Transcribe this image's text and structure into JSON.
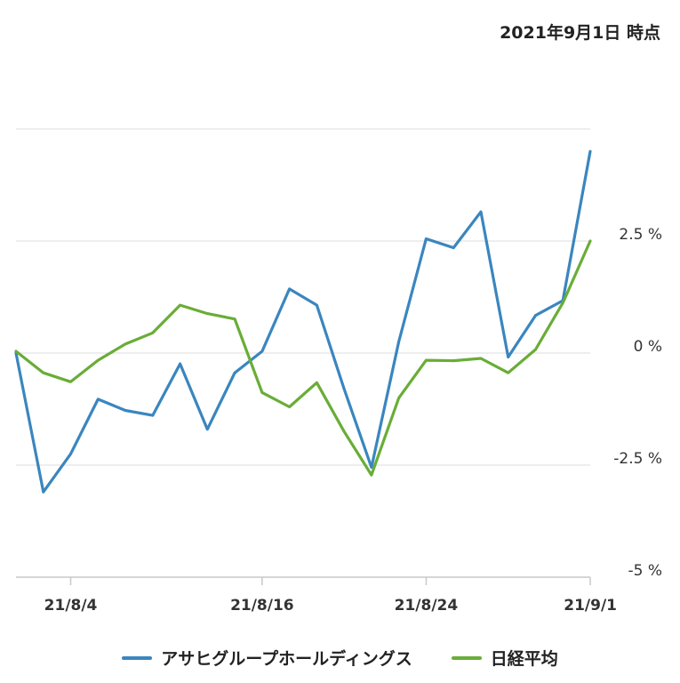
{
  "as_of": "2021年9月1日 時点",
  "colors": {
    "asahi": "#3a86bf",
    "nikkei": "#69ad37",
    "grid": "#dcdcdc",
    "axis": "#c8c8c8"
  },
  "chart_data": {
    "type": "line",
    "xlabel": "",
    "ylabel": "",
    "unit": "%",
    "ylim": [
      -5,
      5
    ],
    "yticks": [
      {
        "value": 2.5,
        "label": "2.5 %"
      },
      {
        "value": 0,
        "label": "0 %"
      },
      {
        "value": -2.5,
        "label": "-2.5 %"
      },
      {
        "value": -5,
        "label": "-5 %"
      }
    ],
    "grid": true,
    "legend_position": "bottom",
    "x": [
      "21/8/2",
      "21/8/3",
      "21/8/4",
      "21/8/5",
      "21/8/6",
      "21/8/10",
      "21/8/11",
      "21/8/12",
      "21/8/13",
      "21/8/16",
      "21/8/17",
      "21/8/18",
      "21/8/19",
      "21/8/20",
      "21/8/23",
      "21/8/24",
      "21/8/25",
      "21/8/26",
      "21/8/27",
      "21/8/30",
      "21/8/31",
      "21/9/1"
    ],
    "xticks": [
      {
        "x": "21/8/4",
        "label": "21/8/4"
      },
      {
        "x": "21/8/16",
        "label": "21/8/16"
      },
      {
        "x": "21/8/24",
        "label": "21/8/24"
      },
      {
        "x": "21/9/1",
        "label": "21/9/1"
      }
    ],
    "series": [
      {
        "name": "アサヒグループホールディングス",
        "color": "#3a86bf",
        "values": [
          0.0,
          -3.1,
          -2.25,
          -1.03,
          -1.28,
          -1.39,
          -0.24,
          -1.7,
          -0.44,
          0.04,
          1.43,
          1.07,
          -0.8,
          -2.55,
          0.26,
          2.55,
          2.35,
          3.15,
          -0.09,
          0.84,
          1.17,
          4.5
        ]
      },
      {
        "name": "日経平均",
        "color": "#69ad37",
        "values": [
          0.04,
          -0.44,
          -0.64,
          -0.16,
          0.2,
          0.45,
          1.07,
          0.88,
          0.76,
          -0.88,
          -1.2,
          -0.66,
          -1.75,
          -2.72,
          -1.0,
          -0.16,
          -0.17,
          -0.12,
          -0.44,
          0.08,
          1.12,
          2.5
        ]
      }
    ]
  }
}
